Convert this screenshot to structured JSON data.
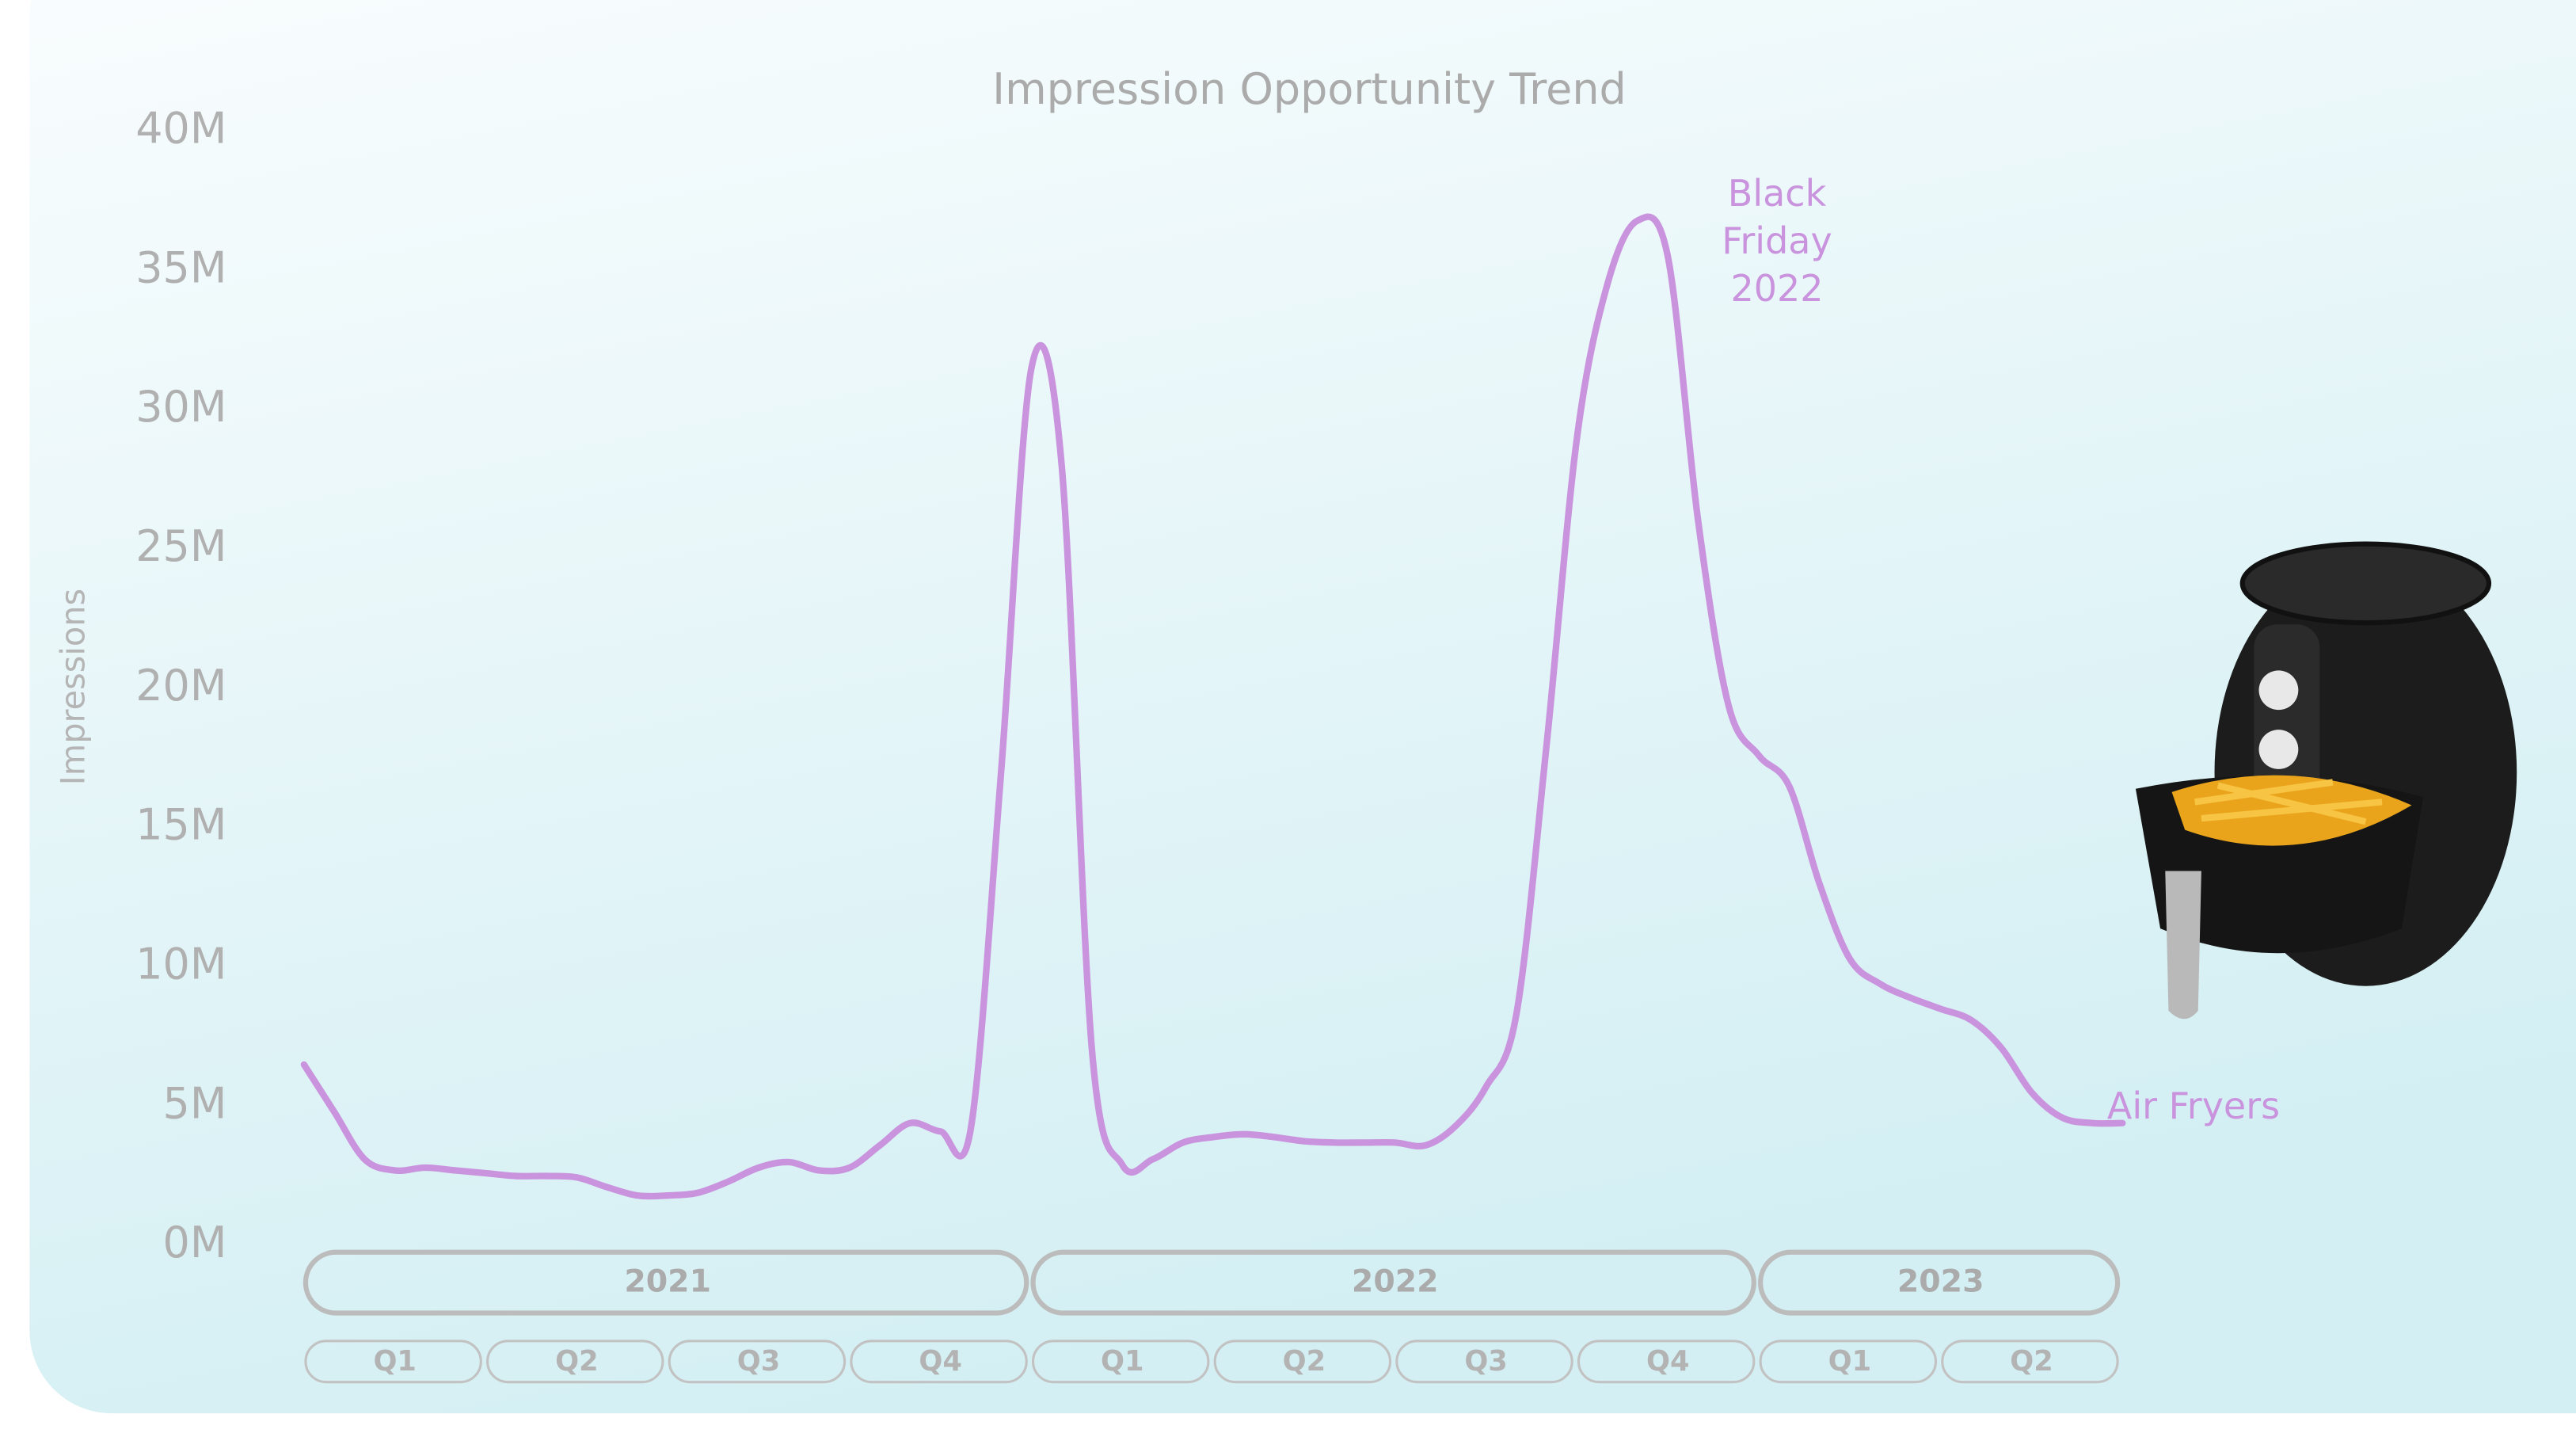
{
  "chart_data": {
    "type": "line",
    "title": "Impression Opportunity Trend",
    "y_label": "Impressions",
    "ylim": [
      0,
      40
    ],
    "yticks": [
      {
        "value": 0,
        "label": "0M"
      },
      {
        "value": 5,
        "label": "5M"
      },
      {
        "value": 10,
        "label": "10M"
      },
      {
        "value": 15,
        "label": "15M"
      },
      {
        "value": 20,
        "label": "20M"
      },
      {
        "value": 25,
        "label": "25M"
      },
      {
        "value": 30,
        "label": "30M"
      },
      {
        "value": 35,
        "label": "35M"
      },
      {
        "value": 40,
        "label": "40M"
      }
    ],
    "periods": [
      {
        "label": "2021",
        "quarters": [
          "Q1",
          "Q2",
          "Q3",
          "Q4"
        ]
      },
      {
        "label": "2022",
        "quarters": [
          "Q1",
          "Q2",
          "Q3",
          "Q4"
        ]
      },
      {
        "label": "2023",
        "quarters": [
          "Q1",
          "Q2"
        ]
      }
    ],
    "series": [
      {
        "name": "Air Fryers",
        "color": "#c994dd",
        "values": [
          6.5,
          4.8,
          3.1,
          2.7,
          2.8,
          2.7,
          2.6,
          2.5,
          2.5,
          2.45,
          2.1,
          1.8,
          1.8,
          1.9,
          2.3,
          2.8,
          3.0,
          2.7,
          2.8,
          3.6,
          4.4,
          4.1,
          4.2,
          17,
          31.5,
          28,
          7,
          2.9,
          3.1,
          3.7,
          3.9,
          4.0,
          3.9,
          3.75,
          3.7,
          3.7,
          3.7,
          3.6,
          4.3,
          5.7,
          8.3,
          18,
          29,
          34.5,
          36.8,
          35.5,
          26,
          19.4,
          17.6,
          16.5,
          13,
          10.3,
          9.4,
          8.9,
          8.5,
          8.1,
          7.1,
          5.5,
          4.6,
          4.4,
          4.4
        ]
      }
    ],
    "annotation": "Black Friday 2022"
  }
}
